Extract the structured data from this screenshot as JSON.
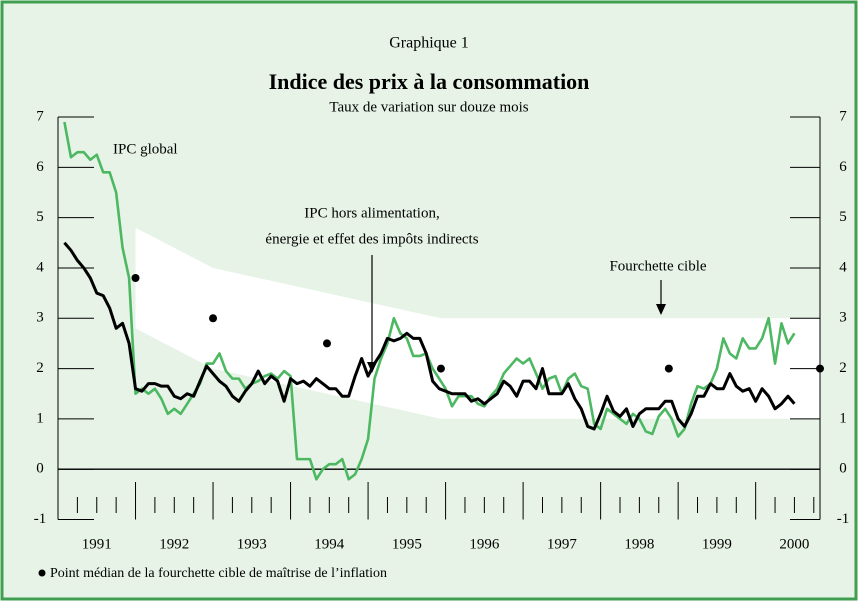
{
  "chart_data": {
    "type": "line",
    "header": "Graphique 1",
    "title": "Indice des prix à la consommation",
    "subtitle": "Taux de variation sur douze mois",
    "xlim": [
      1991,
      2000.83
    ],
    "ylim": [
      -1,
      7
    ],
    "yticks": [
      -1,
      0,
      1,
      2,
      3,
      4,
      5,
      6,
      7
    ],
    "y2lim": [
      -1,
      7
    ],
    "y2ticks": [
      -1,
      0,
      1,
      2,
      3,
      4,
      5,
      6,
      7
    ],
    "xticks": [
      1992,
      1993,
      1994,
      1995,
      1996,
      1997,
      1998,
      1999,
      2000
    ],
    "minor_xticks": [
      1991.25,
      1991.5,
      1991.75,
      1992.25,
      1992.5,
      1992.75,
      1993.25,
      1993.5,
      1993.75,
      1994.25,
      1994.5,
      1994.75,
      1995.25,
      1995.5,
      1995.75,
      1996.25,
      1996.5,
      1996.75,
      1997.25,
      1997.5,
      1997.75,
      1998.25,
      1998.5,
      1998.75,
      1999.25,
      1999.5,
      1999.75,
      2000.25,
      2000.5,
      2000.75
    ],
    "year_labels": [
      1991,
      1992,
      1993,
      1994,
      1995,
      1996,
      1997,
      1998,
      1999,
      2000
    ],
    "x": [
      1991.083,
      1991.167,
      1991.25,
      1991.333,
      1991.417,
      1991.5,
      1991.583,
      1991.667,
      1991.75,
      1991.833,
      1991.917,
      1992.0,
      1992.083,
      1992.167,
      1992.25,
      1992.333,
      1992.417,
      1992.5,
      1992.583,
      1992.667,
      1992.75,
      1992.833,
      1992.917,
      1993.0,
      1993.083,
      1993.167,
      1993.25,
      1993.333,
      1993.417,
      1993.5,
      1993.583,
      1993.667,
      1993.75,
      1993.833,
      1993.917,
      1994.0,
      1994.083,
      1994.167,
      1994.25,
      1994.333,
      1994.417,
      1994.5,
      1994.583,
      1994.667,
      1994.75,
      1994.833,
      1994.917,
      1995.0,
      1995.083,
      1995.167,
      1995.25,
      1995.333,
      1995.417,
      1995.5,
      1995.583,
      1995.667,
      1995.75,
      1995.833,
      1995.917,
      1996.0,
      1996.083,
      1996.167,
      1996.25,
      1996.333,
      1996.417,
      1996.5,
      1996.583,
      1996.667,
      1996.75,
      1996.833,
      1996.917,
      1997.0,
      1997.083,
      1997.167,
      1997.25,
      1997.333,
      1997.417,
      1997.5,
      1997.583,
      1997.667,
      1997.75,
      1997.833,
      1997.917,
      1998.0,
      1998.083,
      1998.167,
      1998.25,
      1998.333,
      1998.417,
      1998.5,
      1998.583,
      1998.667,
      1998.75,
      1998.833,
      1998.917,
      1999.0,
      1999.083,
      1999.167,
      1999.25,
      1999.333,
      1999.417,
      1999.5,
      1999.583,
      1999.667,
      1999.75,
      1999.833,
      1999.917,
      2000.0,
      2000.083,
      2000.167,
      2000.25,
      2000.333,
      2000.417,
      2000.5
    ],
    "series": [
      {
        "name": "IPC global",
        "color": "#4db862",
        "values": [
          6.9,
          6.2,
          6.3,
          6.3,
          6.15,
          6.25,
          5.9,
          5.9,
          5.5,
          4.4,
          3.8,
          1.5,
          1.6,
          1.5,
          1.6,
          1.4,
          1.1,
          1.2,
          1.1,
          1.3,
          1.5,
          1.7,
          2.1,
          2.1,
          2.3,
          1.95,
          1.8,
          1.8,
          1.6,
          1.7,
          1.75,
          1.85,
          1.9,
          1.8,
          1.95,
          1.85,
          0.2,
          0.2,
          0.2,
          -0.2,
          0.0,
          0.1,
          0.1,
          0.2,
          -0.2,
          -0.1,
          0.2,
          0.6,
          1.8,
          2.2,
          2.5,
          3.0,
          2.7,
          2.6,
          2.25,
          2.25,
          2.3,
          2.0,
          1.8,
          1.6,
          1.25,
          1.45,
          1.45,
          1.45,
          1.3,
          1.25,
          1.45,
          1.6,
          1.9,
          2.05,
          2.2,
          2.1,
          2.2,
          1.9,
          1.6,
          1.8,
          1.85,
          1.5,
          1.8,
          1.9,
          1.65,
          1.6,
          0.9,
          0.8,
          1.2,
          1.1,
          1.0,
          0.9,
          1.1,
          1.0,
          0.75,
          0.7,
          1.05,
          1.2,
          1.0,
          0.65,
          0.8,
          1.3,
          1.65,
          1.6,
          1.7,
          2.0,
          2.6,
          2.3,
          2.2,
          2.6,
          2.4,
          2.4,
          2.6,
          3.0,
          2.1,
          2.9,
          2.5,
          2.7
        ]
      },
      {
        "color": "#000000",
        "values": [
          4.5,
          4.35,
          4.15,
          4.0,
          3.8,
          3.5,
          3.45,
          3.2,
          2.8,
          2.9,
          2.5,
          1.6,
          1.55,
          1.7,
          1.7,
          1.65,
          1.65,
          1.45,
          1.4,
          1.5,
          1.45,
          1.75,
          2.05,
          1.9,
          1.75,
          1.65,
          1.45,
          1.35,
          1.55,
          1.7,
          1.95,
          1.7,
          1.85,
          1.75,
          1.35,
          1.8,
          1.7,
          1.75,
          1.65,
          1.8,
          1.7,
          1.6,
          1.6,
          1.45,
          1.45,
          1.85,
          2.2,
          1.85,
          2.1,
          2.3,
          2.6,
          2.55,
          2.6,
          2.7,
          2.6,
          2.6,
          2.3,
          1.75,
          1.6,
          1.55,
          1.5,
          1.5,
          1.5,
          1.35,
          1.4,
          1.3,
          1.4,
          1.5,
          1.75,
          1.65,
          1.45,
          1.75,
          1.75,
          1.6,
          2.0,
          1.5,
          1.5,
          1.5,
          1.7,
          1.4,
          1.2,
          0.85,
          0.8,
          1.1,
          1.45,
          1.15,
          1.05,
          1.2,
          0.85,
          1.1,
          1.2,
          1.2,
          1.2,
          1.35,
          1.35,
          1.0,
          0.85,
          1.1,
          1.45,
          1.45,
          1.7,
          1.6,
          1.6,
          1.9,
          1.65,
          1.55,
          1.6,
          1.35,
          1.6,
          1.45,
          1.2,
          1.3,
          1.45,
          1.3
        ]
      }
    ],
    "annotations": [
      "IPC hors alimentation,",
      "énergie et effet des impôts indirects"
    ],
    "target_band": {
      "name": "Fourchette cible",
      "color": "#ffffff",
      "x": [
        1992.0,
        1993.0,
        1994.47,
        1995.94,
        2000.83
      ],
      "upper": [
        4.8,
        4.0,
        3.5,
        3.0,
        3.0
      ],
      "lower": [
        2.8,
        2.0,
        1.5,
        1.0,
        1.0
      ]
    },
    "midpoints": {
      "name": "Point médian de la fourchette cible de maîtrise de l’inflation",
      "color": "#000000",
      "x": [
        1992.0,
        1993.0,
        1994.47,
        1995.94,
        1998.88,
        2000.83
      ],
      "values": [
        3.8,
        3.0,
        2.5,
        2.0,
        2.0,
        2.0
      ]
    }
  }
}
